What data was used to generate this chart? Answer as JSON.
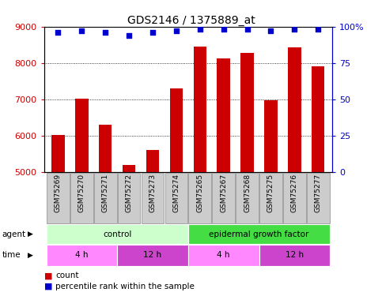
{
  "title": "GDS2146 / 1375889_at",
  "samples": [
    "GSM75269",
    "GSM75270",
    "GSM75271",
    "GSM75272",
    "GSM75273",
    "GSM75274",
    "GSM75265",
    "GSM75267",
    "GSM75268",
    "GSM75275",
    "GSM75276",
    "GSM75277"
  ],
  "counts": [
    6020,
    7020,
    6300,
    5190,
    5620,
    7300,
    8450,
    8130,
    8280,
    6980,
    8430,
    7900
  ],
  "percentile": [
    96,
    97,
    96,
    94,
    96,
    97,
    98,
    98,
    98,
    97,
    98,
    98
  ],
  "bar_color": "#cc0000",
  "dot_color": "#0000cc",
  "ylim_left": [
    5000,
    9000
  ],
  "ylim_right": [
    0,
    100
  ],
  "yticks_left": [
    5000,
    6000,
    7000,
    8000,
    9000
  ],
  "yticks_right": [
    0,
    25,
    50,
    75,
    100
  ],
  "ylabel_right_ticks": [
    "0",
    "25",
    "50",
    "75",
    "100%"
  ],
  "agent_labels": [
    {
      "label": "control",
      "start": 0,
      "end": 6,
      "color": "#ccffcc"
    },
    {
      "label": "epidermal growth factor",
      "start": 6,
      "end": 12,
      "color": "#44dd44"
    }
  ],
  "time_labels": [
    {
      "label": "4 h",
      "start": 0,
      "end": 3,
      "color": "#ff88ff"
    },
    {
      "label": "12 h",
      "start": 3,
      "end": 6,
      "color": "#cc44cc"
    },
    {
      "label": "4 h",
      "start": 6,
      "end": 9,
      "color": "#ff88ff"
    },
    {
      "label": "12 h",
      "start": 9,
      "end": 12,
      "color": "#cc44cc"
    }
  ],
  "legend_count_color": "#cc0000",
  "legend_dot_color": "#0000cc",
  "plot_bg": "#ffffff",
  "grid_color": "#000000",
  "bar_width": 0.55,
  "sample_box_color": "#cccccc",
  "sample_box_edge": "#888888"
}
